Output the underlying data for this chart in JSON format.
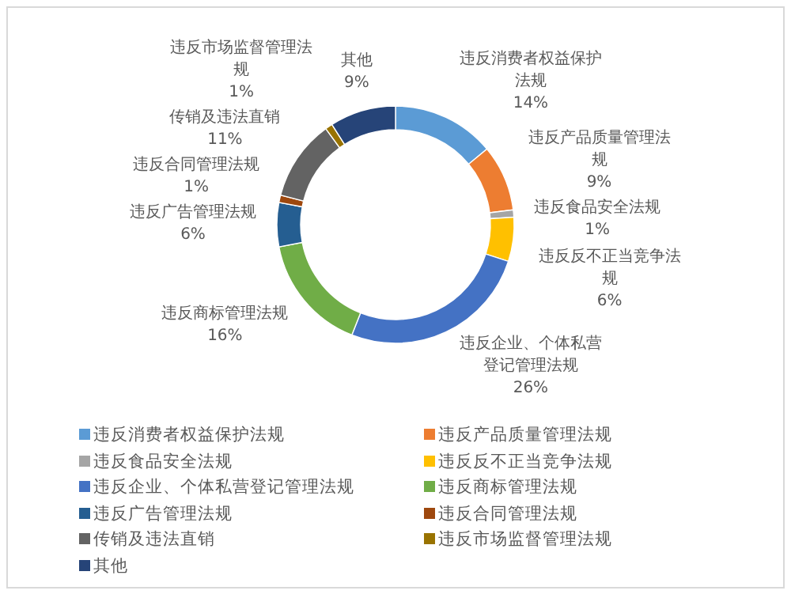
{
  "chart_data": {
    "type": "donut",
    "categories": [
      "违反消费者权益保护法规",
      "违反产品质量管理法规",
      "违反食品安全法规",
      "违反反不正当竞争法规",
      "违反企业、个体私营登记管理法规",
      "违反商标管理法规",
      "违反广告管理法规",
      "违反合同管理法规",
      "传销及违法直销",
      "违反市场监督管理法规",
      "其他"
    ],
    "values": [
      14,
      9,
      1,
      6,
      26,
      16,
      6,
      1,
      11,
      1,
      9
    ],
    "colors": [
      "#5b9bd5",
      "#ed7d31",
      "#a5a5a5",
      "#ffc000",
      "#4472c4",
      "#70ad47",
      "#255e91",
      "#9e480e",
      "#636363",
      "#997300",
      "#264478"
    ],
    "value_labels": [
      "14%",
      "9%",
      "1%",
      "6%",
      "26%",
      "16%",
      "6%",
      "1%",
      "11%",
      "1%",
      "9%"
    ],
    "legend": "bottom"
  }
}
